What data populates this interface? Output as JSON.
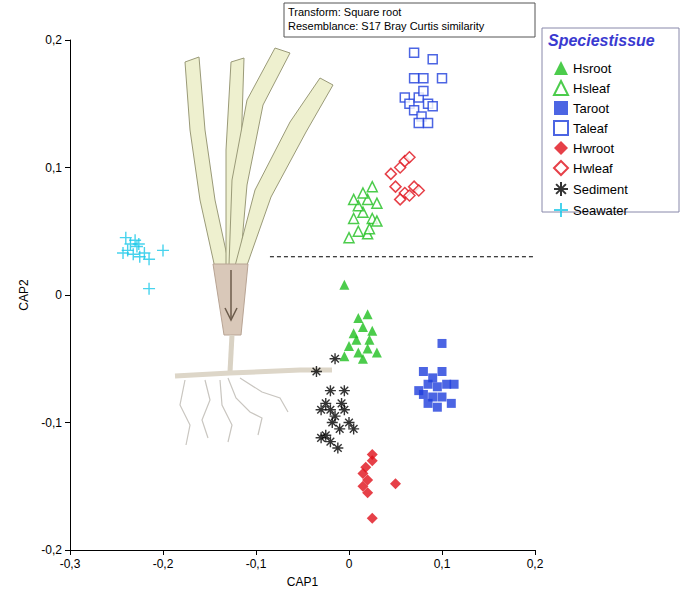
{
  "chart_data": {
    "type": "scatter",
    "annotations": [
      "Transform: Square root",
      "Resemblance: S17 Bray Curtis similarity"
    ],
    "x_label": "CAP1",
    "y_label": "CAP2",
    "xlim": [
      -0.3,
      0.2
    ],
    "xticks": [
      {
        "value": -0.3,
        "label": "-0,3"
      },
      {
        "value": -0.2,
        "label": "-0,2"
      },
      {
        "value": -0.1,
        "label": "-0,1"
      },
      0,
      {
        "value": 0.1,
        "label": "0,1"
      },
      {
        "value": 0.2,
        "label": "0,2"
      }
    ],
    "ylim": [
      -0.2,
      0.2
    ],
    "yticks": [
      {
        "value": -0.2,
        "label": "-0,2"
      },
      {
        "value": -0.1,
        "label": "-0,1"
      },
      0,
      {
        "value": 0.1,
        "label": "0,1"
      },
      {
        "value": 0.2,
        "label": "0,2"
      }
    ],
    "grid": false,
    "legend": "right",
    "legend_title": "Speciestissue",
    "reference_line": {
      "y": 0.03,
      "xmin": -0.085,
      "xmax": 0.2,
      "line_style": "dashed"
    },
    "series": [
      {
        "name": "Hsroot",
        "color": "#1fbf1f",
        "marker": "triangle",
        "x": [
          -0.005,
          0.01,
          0.02,
          0.015,
          0.005,
          0.025,
          0.0,
          0.01,
          0.02,
          0.03,
          -0.005,
          0.015,
          0.008,
          0.022
        ],
        "y": [
          0.008,
          -0.018,
          -0.015,
          -0.025,
          -0.03,
          -0.028,
          -0.04,
          -0.045,
          -0.042,
          -0.045,
          -0.048,
          -0.05,
          -0.035,
          -0.035
        ]
      },
      {
        "name": "Hsleaf",
        "color": "#1fbf1f",
        "marker": "triangle-open",
        "x": [
          0.0,
          0.01,
          0.02,
          0.005,
          0.015,
          0.025,
          0.01,
          0.02,
          0.03,
          0.015,
          0.025,
          0.005,
          0.03,
          0.022
        ],
        "y": [
          0.045,
          0.05,
          0.048,
          0.06,
          0.065,
          0.06,
          0.07,
          0.075,
          0.072,
          0.08,
          0.085,
          0.075,
          0.058,
          0.052
        ]
      },
      {
        "name": "Taroot",
        "color": "#1f3fdc",
        "marker": "square",
        "x": [
          0.1,
          0.08,
          0.09,
          0.1,
          0.085,
          0.095,
          0.105,
          0.08,
          0.09,
          0.1,
          0.11,
          0.085,
          0.095,
          0.075,
          0.113
        ],
        "y": [
          -0.038,
          -0.06,
          -0.065,
          -0.06,
          -0.07,
          -0.072,
          -0.07,
          -0.078,
          -0.08,
          -0.08,
          -0.085,
          -0.085,
          -0.088,
          -0.075,
          -0.07
        ]
      },
      {
        "name": "Taleaf",
        "color": "#1f3fdc",
        "marker": "square-open",
        "x": [
          0.07,
          0.09,
          0.1,
          0.07,
          0.06,
          0.065,
          0.075,
          0.08,
          0.085,
          0.07,
          0.078,
          0.085,
          0.075,
          0.09,
          0.08
        ],
        "y": [
          0.19,
          0.185,
          0.17,
          0.17,
          0.155,
          0.15,
          0.155,
          0.16,
          0.15,
          0.145,
          0.14,
          0.135,
          0.135,
          0.148,
          0.17
        ]
      },
      {
        "name": "Hwroot",
        "color": "#e0101a",
        "marker": "diamond",
        "x": [
          0.025,
          0.025,
          0.015,
          0.02,
          0.015,
          0.02,
          0.05,
          0.025,
          0.018
        ],
        "y": [
          -0.125,
          -0.13,
          -0.14,
          -0.145,
          -0.15,
          -0.155,
          -0.148,
          -0.175,
          -0.135
        ]
      },
      {
        "name": "Hwleaf",
        "color": "#e0101a",
        "marker": "diamond-open",
        "x": [
          0.045,
          0.055,
          0.06,
          0.065,
          0.05,
          0.06,
          0.07,
          0.055,
          0.065,
          0.075
        ],
        "y": [
          0.095,
          0.1,
          0.105,
          0.108,
          0.085,
          0.08,
          0.085,
          0.075,
          0.078,
          0.082
        ]
      },
      {
        "name": "Sediment",
        "color": "#000000",
        "marker": "asterisk",
        "x": [
          -0.035,
          -0.02,
          -0.005,
          -0.015,
          -0.025,
          -0.02,
          -0.015,
          -0.005,
          0.0,
          -0.01,
          -0.025,
          -0.03,
          -0.02,
          -0.012,
          0.005,
          -0.008,
          -0.018,
          -0.03
        ],
        "y": [
          -0.06,
          -0.075,
          -0.075,
          -0.05,
          -0.085,
          -0.09,
          -0.095,
          -0.09,
          -0.1,
          -0.105,
          -0.11,
          -0.112,
          -0.115,
          -0.12,
          -0.105,
          -0.085,
          -0.1,
          -0.09
        ]
      },
      {
        "name": "Seawater",
        "color": "#19c8e8",
        "marker": "plus",
        "x": [
          -0.24,
          -0.235,
          -0.238,
          -0.232,
          -0.228,
          -0.225,
          -0.22,
          -0.215,
          -0.2,
          -0.243,
          -0.23,
          -0.215,
          -0.226
        ],
        "y": [
          0.045,
          0.04,
          0.035,
          0.032,
          0.038,
          0.03,
          0.033,
          0.028,
          0.035,
          0.033,
          0.043,
          0.005,
          0.04
        ]
      }
    ]
  }
}
